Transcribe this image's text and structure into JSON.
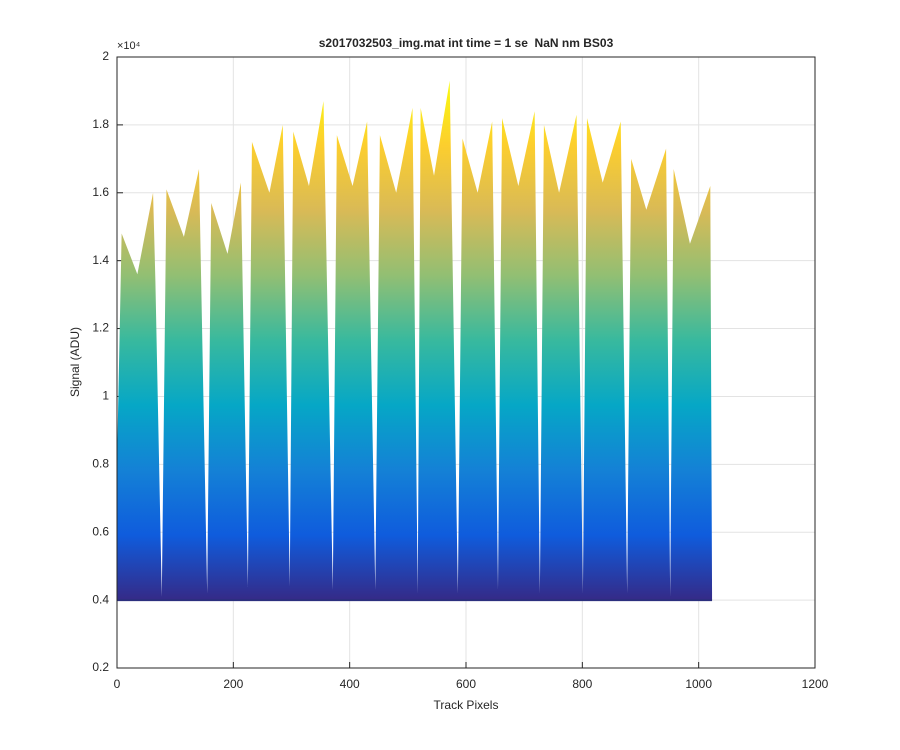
{
  "chart_data": {
    "type": "area",
    "title": "s2017032503_img.mat int time = 1 se  NaN nm BS03",
    "x_label": "Track Pixels",
    "y_label": "Signal (ADU)",
    "y_exponent": "×10⁴",
    "x": [
      0,
      8,
      35,
      62,
      66,
      77,
      85,
      115,
      141,
      155,
      162,
      190,
      213,
      225,
      232,
      262,
      285,
      297,
      303,
      330,
      355,
      371,
      378,
      405,
      430,
      444,
      452,
      480,
      508,
      517,
      522,
      545,
      572,
      586,
      594,
      620,
      645,
      655,
      662,
      690,
      718,
      727,
      734,
      760,
      790,
      801,
      808,
      835,
      866,
      877,
      884,
      910,
      944,
      951,
      957,
      985,
      1020,
      1023
    ],
    "values": [
      0.8,
      1.48,
      1.36,
      1.6,
      1.34,
      0.41,
      1.61,
      1.47,
      1.67,
      0.42,
      1.57,
      1.42,
      1.63,
      0.44,
      1.75,
      1.6,
      1.8,
      0.44,
      1.78,
      1.62,
      1.87,
      0.43,
      1.77,
      1.62,
      1.81,
      0.43,
      1.77,
      1.6,
      1.85,
      0.42,
      1.85,
      1.65,
      1.93,
      0.42,
      1.76,
      1.6,
      1.81,
      0.43,
      1.82,
      1.62,
      1.84,
      0.42,
      1.8,
      1.6,
      1.83,
      0.42,
      1.82,
      1.63,
      1.81,
      0.42,
      1.7,
      1.55,
      1.73,
      0.41,
      1.67,
      1.45,
      1.62,
      0.42
    ],
    "lower_values": [
      0.4,
      0.4,
      0.4,
      0.4,
      0.4,
      0.4,
      0.4,
      0.4,
      0.4,
      0.4,
      0.4,
      0.4,
      0.4,
      0.4,
      0.4,
      0.4,
      0.4,
      0.4,
      0.4,
      0.4,
      0.4,
      0.4,
      0.4,
      0.4,
      0.4,
      0.4,
      0.4,
      0.4,
      0.4,
      0.4,
      0.4,
      0.4,
      0.4,
      0.4,
      0.4,
      0.4,
      0.4,
      0.4,
      0.4,
      0.4,
      0.4,
      0.4,
      0.4,
      0.4,
      0.4,
      0.4,
      0.4,
      0.4,
      0.4,
      0.4,
      0.4,
      0.4,
      0.4,
      0.4,
      0.4,
      0.4,
      0.4,
      0.4
    ],
    "colormap": [
      "#352a87",
      "#0f5cdd",
      "#1481d6",
      "#06a7c6",
      "#38b99e",
      "#92bf73",
      "#d9ba56",
      "#fcce2e",
      "#f9fb0e"
    ],
    "lower_color": "#2b2f7e",
    "xlim": [
      0,
      1200
    ],
    "xticks": [
      0,
      200,
      400,
      600,
      800,
      1000,
      1200
    ],
    "ylim": [
      0.2,
      2
    ],
    "yticks": [
      0.2,
      0.4,
      0.6,
      0.8,
      1,
      1.2,
      1.4,
      1.6,
      1.8,
      2
    ],
    "grid": true
  }
}
